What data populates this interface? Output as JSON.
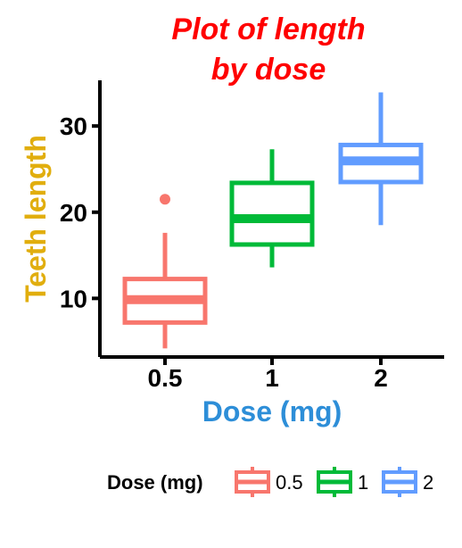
{
  "chart_data": {
    "type": "box",
    "title": "Plot of length\nby dose",
    "title_color": "#FF0000",
    "xlabel": "Dose (mg)",
    "xlabel_color": "#2D8ED8",
    "ylabel": "Teeth length",
    "ylabel_color": "#E1AE0E",
    "yticks": [
      10,
      20,
      30
    ],
    "ylim": [
      3.2,
      35.3
    ],
    "categories": [
      "0.5",
      "1",
      "2"
    ],
    "boxes": [
      {
        "category": "0.5",
        "min": 4.2,
        "q1": 7.2,
        "median": 9.85,
        "q3": 12.25,
        "max": 17.6,
        "outliers": [
          21.5
        ],
        "color": "#F8766D"
      },
      {
        "category": "1",
        "min": 13.6,
        "q1": 16.25,
        "median": 19.25,
        "q3": 23.4,
        "max": 27.3,
        "outliers": [],
        "color": "#00BA38"
      },
      {
        "category": "2",
        "min": 18.5,
        "q1": 23.5,
        "median": 25.95,
        "q3": 27.8,
        "max": 33.9,
        "outliers": [],
        "color": "#619CFF"
      }
    ],
    "legend": {
      "title": "Dose (mg)",
      "position": "bottom",
      "entries": [
        "0.5",
        "1",
        "2"
      ]
    },
    "grid": false
  }
}
